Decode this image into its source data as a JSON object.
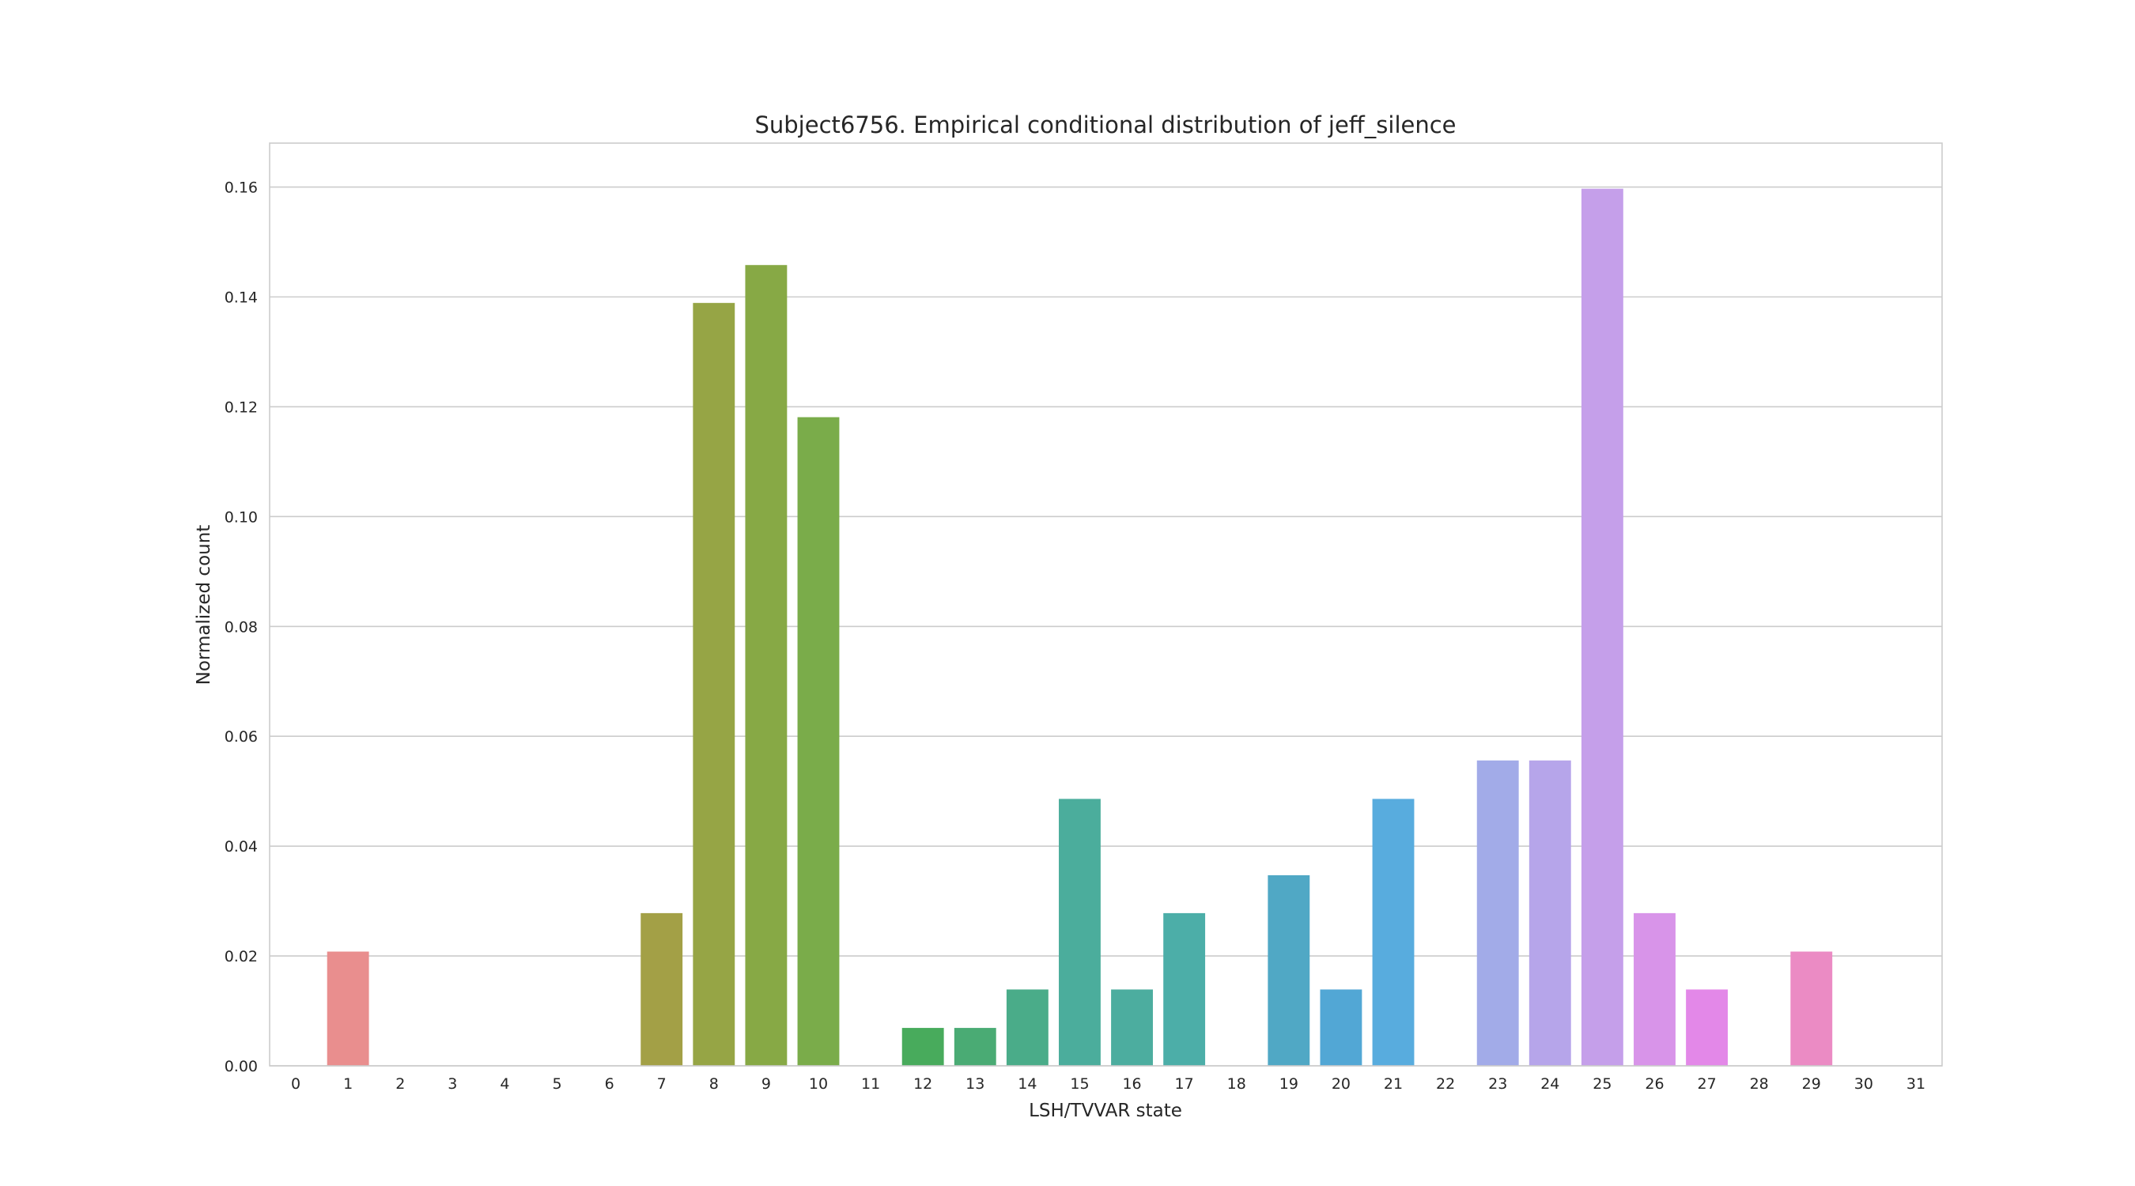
{
  "chart_data": {
    "type": "bar",
    "title": "Subject6756. Empirical conditional distribution of jeff_silence",
    "xlabel": "LSH/TVVAR state",
    "ylabel": "Normalized count",
    "categories": [
      "0",
      "1",
      "2",
      "3",
      "4",
      "5",
      "6",
      "7",
      "8",
      "9",
      "10",
      "11",
      "12",
      "13",
      "14",
      "15",
      "16",
      "17",
      "18",
      "19",
      "20",
      "21",
      "22",
      "23",
      "24",
      "25",
      "26",
      "27",
      "28",
      "29",
      "30",
      "31"
    ],
    "values": [
      0,
      0.0208,
      0,
      0,
      0,
      0,
      0,
      0.0278,
      0.1389,
      0.1458,
      0.1181,
      0,
      0.0069,
      0.0069,
      0.0139,
      0.0486,
      0.0139,
      0.0278,
      0,
      0.0347,
      0.0139,
      0.0486,
      0,
      0.0556,
      0.0556,
      0.1597,
      0.0278,
      0.0139,
      0,
      0.0208,
      0,
      0
    ],
    "colors": [
      "#f77189",
      "#e98e8e",
      "#dd8f57",
      "#d08f35",
      "#c09432",
      "#b09a32",
      "#a49e32",
      "#a3a046",
      "#96a545",
      "#87a945",
      "#7aac4a",
      "#5aad4c",
      "#48ab5c",
      "#4aab74",
      "#4aac89",
      "#4bad9c",
      "#4cad9f",
      "#4caea8",
      "#4eaebf",
      "#50a8c5",
      "#52a7d5",
      "#58acde",
      "#76a4e6",
      "#a2abe8",
      "#b6a5ea",
      "#c59fea",
      "#d894e9",
      "#e388e8",
      "#ec87d4",
      "#eb8bc4",
      "#f281b6",
      "#f47ba2"
    ],
    "yticks": [
      "0.00",
      "0.02",
      "0.04",
      "0.06",
      "0.08",
      "0.10",
      "0.12",
      "0.14",
      "0.16"
    ],
    "ylim": [
      0,
      0.168
    ],
    "grid": true,
    "style": "seaborn-whitegrid"
  }
}
